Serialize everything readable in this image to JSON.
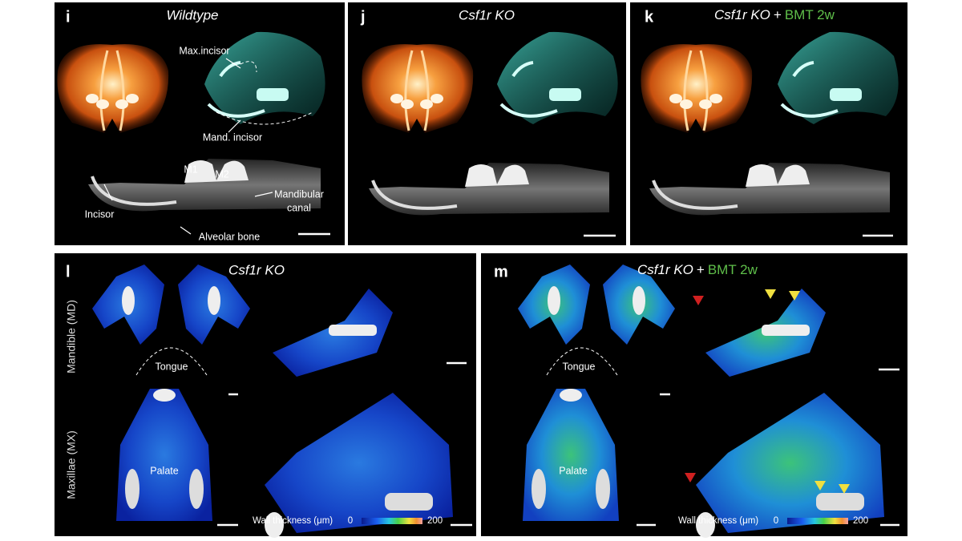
{
  "panels": {
    "i": {
      "letter": "i",
      "title": "Wildtype",
      "labels": {
        "max_incisor": "Max.incisor",
        "mand_incisor": "Mand. incisor",
        "m1": "M1",
        "m2": "M2",
        "incisor": "Incisor",
        "mandibular_canal": [
          "Mandibular",
          "canal"
        ],
        "alveolar_bone": "Alveolar bone"
      }
    },
    "j": {
      "letter": "j",
      "title": "Csf1r KO"
    },
    "k": {
      "letter": "k",
      "title": "Csf1r KO",
      "plus": "+",
      "treatment": "BMT 2w"
    },
    "l": {
      "letter": "l",
      "title": "Csf1r KO",
      "row_labels": [
        "Mandible (MD)",
        "Maxillae (MX)"
      ],
      "tongue": "Tongue",
      "palate": "Palate",
      "colorbar": {
        "label": "Wall thickness (μm)",
        "min": 0,
        "max": 200
      }
    },
    "m": {
      "letter": "m",
      "title": "Csf1r KO",
      "plus": "+",
      "treatment": "BMT 2w",
      "tongue": "Tongue",
      "palate": "Palate",
      "colorbar": {
        "label": "Wall thickness (μm)",
        "min": 0,
        "max": 200
      }
    }
  }
}
